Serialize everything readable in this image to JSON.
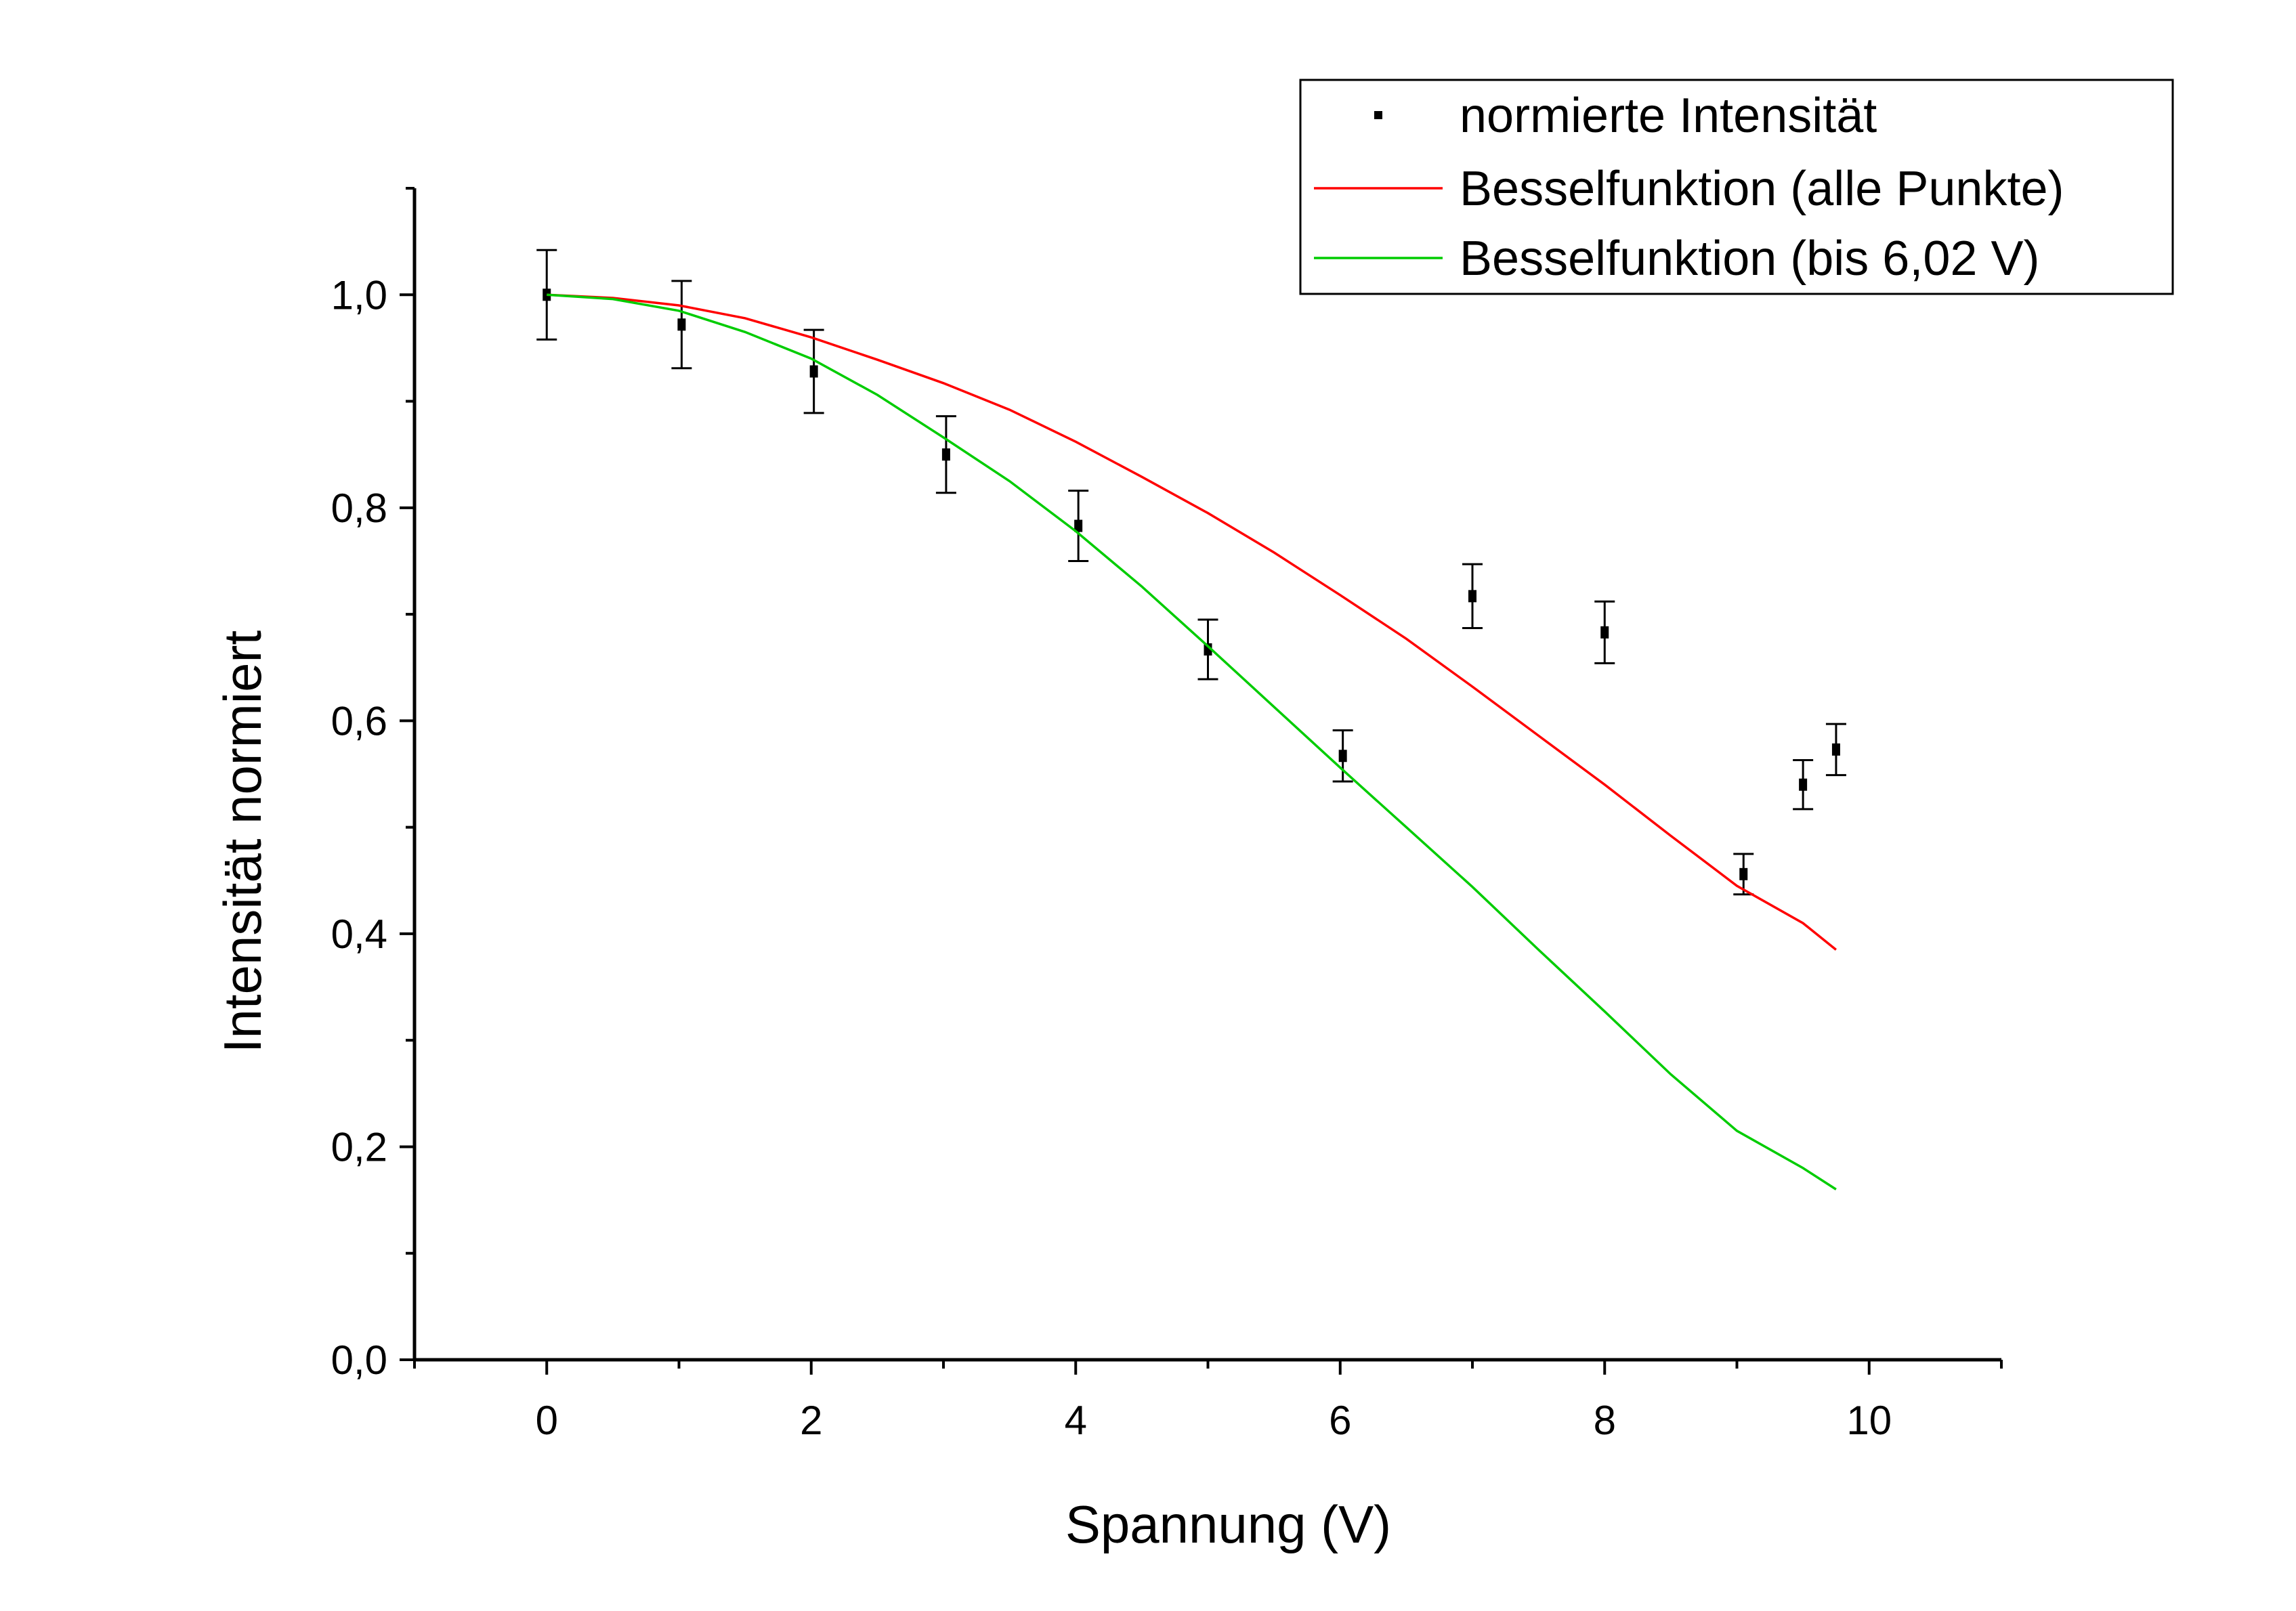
{
  "chart_data": {
    "type": "scatter",
    "xlabel": "Spannung (V)",
    "ylabel": "Intensität normiert",
    "xlim": [
      -1,
      11
    ],
    "ylim": [
      0,
      1.1
    ],
    "x_ticks": [
      0,
      2,
      4,
      6,
      8,
      10
    ],
    "x_tick_labels": [
      "0",
      "2",
      "4",
      "6",
      "8",
      "10"
    ],
    "y_ticks": [
      0,
      0.2,
      0.4,
      0.6,
      0.8,
      1.0
    ],
    "y_tick_labels": [
      "0,0",
      "0,2",
      "0,4",
      "0,6",
      "0,8",
      "1,0"
    ],
    "grid": false,
    "legend_position": "top-right",
    "series": [
      {
        "name": "normierte Intensität",
        "kind": "scatter-errorbar",
        "color": "#000000",
        "points": [
          {
            "x": 0.0,
            "y": 1.0,
            "err": 0.042
          },
          {
            "x": 1.02,
            "y": 0.972,
            "err": 0.041
          },
          {
            "x": 2.02,
            "y": 0.928,
            "err": 0.039
          },
          {
            "x": 3.02,
            "y": 0.85,
            "err": 0.036
          },
          {
            "x": 4.02,
            "y": 0.783,
            "err": 0.033
          },
          {
            "x": 5.0,
            "y": 0.667,
            "err": 0.028
          },
          {
            "x": 6.02,
            "y": 0.567,
            "err": 0.024
          },
          {
            "x": 7.0,
            "y": 0.717,
            "err": 0.03
          },
          {
            "x": 8.0,
            "y": 0.683,
            "err": 0.029
          },
          {
            "x": 9.05,
            "y": 0.456,
            "err": 0.019
          },
          {
            "x": 9.5,
            "y": 0.54,
            "err": 0.023
          },
          {
            "x": 9.75,
            "y": 0.573,
            "err": 0.024
          }
        ]
      },
      {
        "name": "Besselfunktion (alle Punkte)",
        "kind": "line",
        "color": "#ff0000",
        "x": [
          0,
          0.5,
          1,
          1.5,
          2,
          2.5,
          3,
          3.5,
          4,
          4.5,
          5,
          5.5,
          6,
          6.5,
          7,
          7.5,
          8,
          8.5,
          9,
          9.5,
          9.75
        ],
        "y": [
          1.0,
          0.997,
          0.99,
          0.978,
          0.96,
          0.939,
          0.917,
          0.892,
          0.862,
          0.829,
          0.795,
          0.758,
          0.718,
          0.677,
          0.632,
          0.586,
          0.54,
          0.492,
          0.445,
          0.41,
          0.385
        ]
      },
      {
        "name": "Besselfunktion (bis 6,02 V)",
        "kind": "line",
        "color": "#00cc00",
        "x": [
          0,
          0.5,
          1,
          1.5,
          2,
          2.5,
          3,
          3.5,
          4,
          4.5,
          5,
          5.5,
          6,
          6.5,
          7,
          7.5,
          8,
          8.5,
          9,
          9.5,
          9.75
        ],
        "y": [
          1.0,
          0.996,
          0.985,
          0.965,
          0.94,
          0.906,
          0.866,
          0.825,
          0.778,
          0.726,
          0.67,
          0.613,
          0.556,
          0.5,
          0.444,
          0.385,
          0.327,
          0.268,
          0.215,
          0.18,
          0.16
        ]
      }
    ]
  }
}
